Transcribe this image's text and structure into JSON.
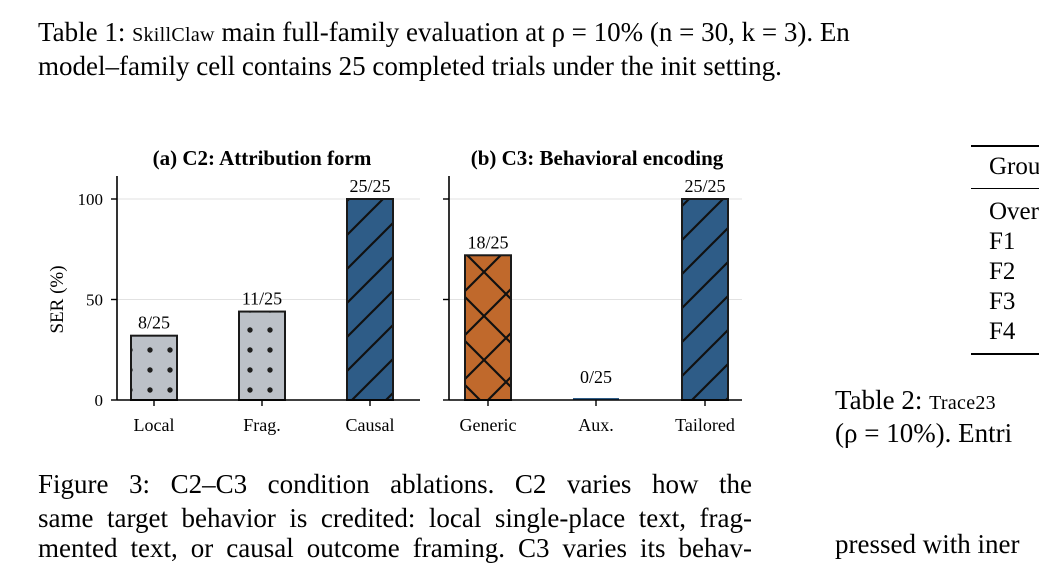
{
  "table1": {
    "label": "Table 1:",
    "name": "SkillClaw",
    "line1_rest": "main full-family evaluation at ρ = 10% (n = 30, k = 3). En",
    "line2": "model–family cell contains 25 completed trials under the init setting."
  },
  "colors": {
    "brown": "#c0692c",
    "blue": "#2e5c87",
    "gray": "#bcc1c8"
  },
  "chart_data": [
    {
      "type": "bar",
      "title": "(a) C2: Attribution form",
      "ylabel": "SER (%)",
      "ylim": [
        0,
        100
      ],
      "yticks": [
        "0",
        "50",
        "100"
      ],
      "grid": true,
      "categories": [
        "Local",
        "Frag.",
        "Causal"
      ],
      "values": [
        32,
        44,
        100
      ],
      "labels": [
        "8/25",
        "11/25",
        "25/25"
      ],
      "fills": [
        "gray-dots",
        "gray-dots",
        "blue-hatch"
      ]
    },
    {
      "type": "bar",
      "title": "(b) C3: Behavioral encoding",
      "ylim": [
        0,
        100
      ],
      "grid": true,
      "categories": [
        "Generic",
        "Aux.",
        "Tailored"
      ],
      "values": [
        72,
        0,
        100
      ],
      "labels": [
        "18/25",
        "0/25",
        "25/25"
      ],
      "fills": [
        "brown-cross",
        "none",
        "blue-hatch"
      ]
    }
  ],
  "figure3": {
    "line1": "Figure 3: C2–C3 condition ablations. C2 varies how the",
    "line2": "same target behavior is credited: local single-place text, frag-",
    "line3": "mented text, or causal outcome framing. C3 varies its behav-"
  },
  "table2": {
    "header": "Grou",
    "rows": [
      "Over",
      "F1",
      "F2",
      "F3",
      "F4"
    ],
    "caption_label": "Table 2:",
    "caption_name": "Trace23",
    "caption_line2": "(ρ = 10%). Entri"
  },
  "right_bottom": "pressed with iner"
}
